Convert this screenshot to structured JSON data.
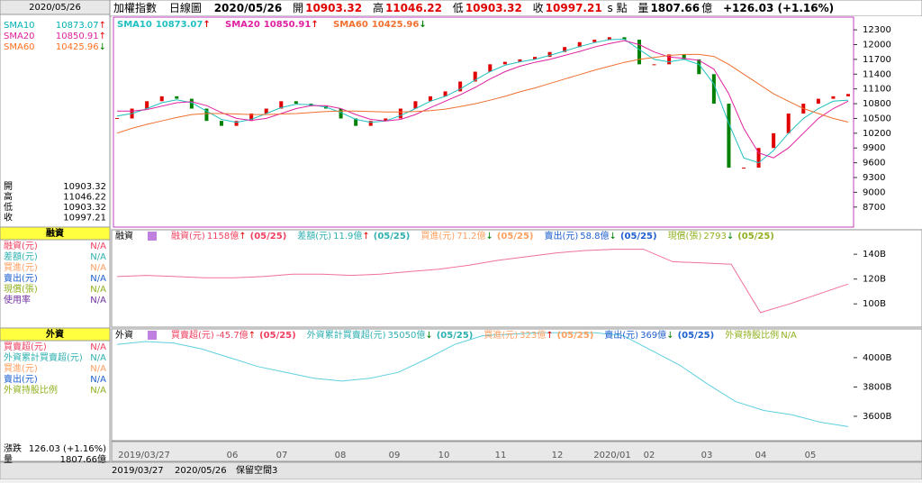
{
  "header": {
    "index": "加權指數",
    "chart": "日線圖",
    "date": "2020/05/26",
    "fields": [
      {
        "label": "開",
        "value": "10903.32"
      },
      {
        "label": "高",
        "value": "11046.22"
      },
      {
        "label": "低",
        "value": "10903.32"
      },
      {
        "label": "收",
        "value": "10997.21"
      }
    ],
    "unit": "s 點",
    "volume_label": "量",
    "volume": "1807.66",
    "volume_unit": "億",
    "change": "+126.03 (+1.16%)"
  },
  "sidebar": {
    "date": "2020/05/26",
    "sma": [
      {
        "label": "SMA10",
        "value": "10873.07",
        "arrow": "↑",
        "color": "#00b0b0",
        "arrow_color": "#e00000"
      },
      {
        "label": "SMA20",
        "value": "10850.91",
        "arrow": "↑",
        "color": "#e020a0",
        "arrow_color": "#e00000"
      },
      {
        "label": "SMA60",
        "value": "10425.96",
        "arrow": "↓",
        "color": "#ff7020",
        "arrow_color": "#008000"
      }
    ],
    "ohlc": [
      {
        "label": "開",
        "value": "10903.32"
      },
      {
        "label": "高",
        "value": "11046.22"
      },
      {
        "label": "低",
        "value": "10903.32"
      },
      {
        "label": "收",
        "value": "10997.21"
      }
    ],
    "margin_title": "融資",
    "margin_rows": [
      {
        "label": "融資(元)",
        "value": "N/A",
        "color": "#f04060"
      },
      {
        "label": "差額(元)",
        "value": "N/A",
        "color": "#30b0b0"
      },
      {
        "label": "買進(元)",
        "value": "N/A",
        "color": "#ffa060"
      },
      {
        "label": "賣出(元)",
        "value": "N/A",
        "color": "#2060d0"
      },
      {
        "label": "現償(張)",
        "value": "N/A",
        "color": "#90b020"
      },
      {
        "label": "使用率",
        "value": "N/A",
        "color": "#7030a0"
      }
    ],
    "foreign_title": "外資",
    "foreign_rows": [
      {
        "label": "買賣超(元)",
        "value": "N/A",
        "color": "#f04060"
      },
      {
        "label": "外資累計買賣超(元)",
        "value": "N/A",
        "color": "#30b0b0"
      },
      {
        "label": "買進(元)",
        "value": "N/A",
        "color": "#ffa060"
      },
      {
        "label": "賣出(元)",
        "value": "N/A",
        "color": "#2060d0"
      },
      {
        "label": "外資持股比例",
        "value": "N/A",
        "color": "#90b020"
      }
    ],
    "change_label": "漲跌",
    "change": "126.03 (+1.16%)",
    "volume_label": "量",
    "volume": "1807.66億"
  },
  "chart_data": [
    {
      "type": "candlestick",
      "close": [
        10500,
        10700,
        10850,
        10950,
        10900,
        10700,
        10450,
        10350,
        10450,
        10600,
        10700,
        10850,
        10800,
        10750,
        10700,
        10500,
        10350,
        10450,
        10500,
        10700,
        10850,
        10950,
        11050,
        11250,
        11450,
        11600,
        11650,
        11700,
        11750,
        11850,
        11950,
        12050,
        12100,
        12150,
        12100,
        11600,
        11600,
        11800,
        11700,
        11400,
        10800,
        9500,
        9500,
        9900,
        10200,
        10600,
        10800,
        10900,
        10950,
        10997
      ],
      "up_color": "#e00000",
      "down_color": "#008000",
      "series": [
        {
          "name": "SMA10",
          "legend_value": "10873.07",
          "legend_arrow": "↑",
          "arrow_color": "#e00000",
          "color": "#20c0c0",
          "values": [
            10550,
            10600,
            10700,
            10820,
            10880,
            10820,
            10650,
            10480,
            10420,
            10480,
            10600,
            10720,
            10790,
            10780,
            10730,
            10620,
            10480,
            10420,
            10450,
            10560,
            10700,
            10850,
            10950,
            11100,
            11280,
            11450,
            11580,
            11650,
            11700,
            11780,
            11870,
            11960,
            12040,
            12100,
            12110,
            11900,
            11700,
            11650,
            11700,
            11600,
            11200,
            10400,
            9700,
            9600,
            9850,
            10200,
            10500,
            10700,
            10850,
            10873
          ]
        },
        {
          "name": "SMA20",
          "legend_value": "10850.91",
          "legend_arrow": "↑",
          "arrow_color": "#e00000",
          "color": "#e020a0",
          "values": [
            10650,
            10650,
            10680,
            10750,
            10820,
            10840,
            10760,
            10620,
            10500,
            10460,
            10500,
            10600,
            10700,
            10760,
            10760,
            10700,
            10580,
            10480,
            10450,
            10480,
            10580,
            10720,
            10850,
            10980,
            11130,
            11300,
            11450,
            11560,
            11640,
            11700,
            11780,
            11860,
            11950,
            12020,
            12080,
            12000,
            11850,
            11750,
            11720,
            11680,
            11500,
            11000,
            10300,
            9800,
            9700,
            9900,
            10200,
            10500,
            10700,
            10851
          ]
        },
        {
          "name": "SMA60",
          "legend_value": "10425.96",
          "legend_arrow": "↓",
          "arrow_color": "#008000",
          "color": "#f07030",
          "values": [
            10200,
            10300,
            10380,
            10450,
            10520,
            10580,
            10600,
            10600,
            10590,
            10580,
            10580,
            10590,
            10600,
            10620,
            10640,
            10650,
            10650,
            10640,
            10630,
            10630,
            10640,
            10660,
            10690,
            10740,
            10800,
            10870,
            10950,
            11040,
            11120,
            11210,
            11300,
            11390,
            11480,
            11560,
            11640,
            11700,
            11740,
            11780,
            11800,
            11800,
            11760,
            11600,
            11400,
            11200,
            11000,
            10850,
            10700,
            10600,
            10500,
            10426
          ]
        }
      ],
      "ylim": [
        8330,
        12540
      ],
      "yticks": [
        8700,
        9000,
        9300,
        9600,
        9900,
        10200,
        10500,
        10800,
        11100,
        11400,
        11700,
        12000,
        12300
      ]
    },
    {
      "type": "line",
      "title": "融資",
      "series": [
        {
          "color": "#f070a0",
          "values": [
            122,
            123,
            122,
            121,
            121,
            122,
            124,
            124,
            123,
            124,
            126,
            128,
            131,
            135,
            138,
            141,
            143,
            144,
            144,
            134,
            133,
            132,
            93,
            100,
            108,
            116
          ]
        }
      ],
      "legend": [
        {
          "label": "融資(元)",
          "value": "1158億",
          "arrow": "↑",
          "date": "(05/25)",
          "color": "#f04060",
          "arrow_color": "#e00000"
        },
        {
          "label": "差額(元)",
          "value": "11.9億",
          "arrow": "↑",
          "date": "(05/25)",
          "color": "#30b0b0",
          "arrow_color": "#e00000"
        },
        {
          "label": "買進(元)",
          "value": "71.2億",
          "arrow": "↓",
          "date": "(05/25)",
          "color": "#ffa060",
          "arrow_color": "#008000"
        },
        {
          "label": "賣出(元)",
          "value": "58.8億",
          "arrow": "↓",
          "date": "(05/25)",
          "color": "#2060d0",
          "arrow_color": "#008000"
        },
        {
          "label": "現償(張)",
          "value": "2793",
          "arrow": "↓",
          "date": "(05/25)",
          "color": "#90b020",
          "arrow_color": "#008000"
        }
      ],
      "ylim": [
        82,
        159
      ],
      "yticks": [
        {
          "value": 100,
          "label": "100B"
        },
        {
          "value": 120,
          "label": "120B"
        },
        {
          "value": 140,
          "label": "140B"
        }
      ]
    },
    {
      "type": "line",
      "title": "外資",
      "series": [
        {
          "color": "#60d0e0",
          "values": [
            4090,
            4110,
            4100,
            4060,
            4000,
            3940,
            3900,
            3860,
            3840,
            3860,
            3900,
            3990,
            4090,
            4150,
            4160,
            4170,
            4170,
            4170,
            4150,
            4050,
            3950,
            3820,
            3700,
            3640,
            3610,
            3560,
            3530
          ]
        }
      ],
      "legend": [
        {
          "label": "買賣超(元)",
          "value": "-45.7億",
          "arrow": "↑",
          "date": "(05/25)",
          "color": "#f04060",
          "arrow_color": "#e00000"
        },
        {
          "label": "外資累計買賣超(元)",
          "value": "35050億",
          "arrow": "↓",
          "date": "(05/25)",
          "color": "#30b0b0",
          "arrow_color": "#008000"
        },
        {
          "label": "買進(元)",
          "value": "323億",
          "arrow": "↑",
          "date": "(05/25)",
          "color": "#ffa060",
          "arrow_color": "#e00000"
        },
        {
          "label": "賣出(元)",
          "value": "369億",
          "arrow": "↓",
          "date": "(05/25)",
          "color": "#2060d0",
          "arrow_color": "#008000"
        },
        {
          "label": "外資持股比例",
          "value": "N/A",
          "arrow": "",
          "date": "",
          "color": "#90b020",
          "arrow_color": "#90b020"
        }
      ],
      "ylim": [
        3440,
        4190
      ],
      "yticks": [
        {
          "value": 3600,
          "label": "3600B"
        },
        {
          "value": 3800,
          "label": "3800B"
        },
        {
          "value": 4000,
          "label": "4000B"
        }
      ]
    }
  ],
  "x_axis": [
    "2019/03/27",
    "06",
    "07",
    "08",
    "09",
    "10",
    "11",
    "12",
    "2020/01",
    "02",
    "03",
    "04",
    "05"
  ],
  "toolbar": {
    "start": "2019/03/27",
    "end": "2020/05/26",
    "reserve": "保留空間",
    "count": "3"
  }
}
